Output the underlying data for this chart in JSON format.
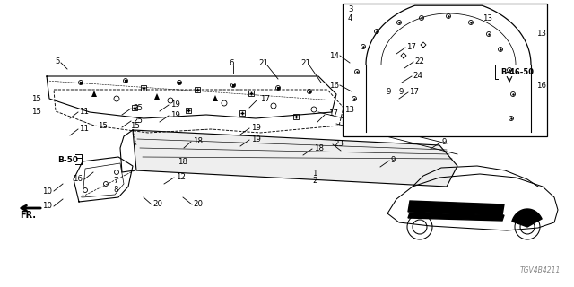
{
  "background_color": "#ffffff",
  "diagram_color": "#000000",
  "watermark": "TGV4B4211",
  "ref_label_left": "B-50",
  "ref_label_right": "B-46-50",
  "fr_text": "FR."
}
